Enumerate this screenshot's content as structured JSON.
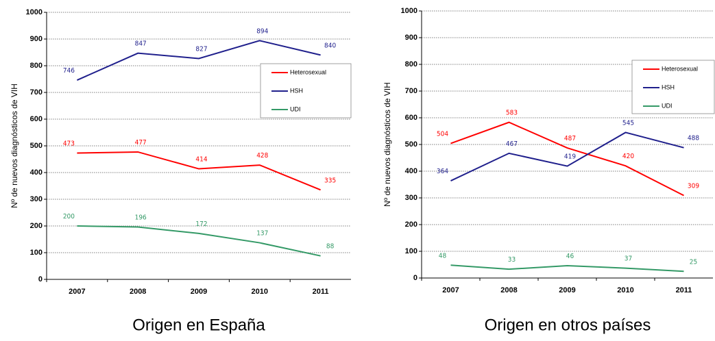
{
  "chart_data": [
    {
      "type": "line",
      "title": "Origen en España",
      "ylabel": "Nº de nuevos diagnósticos de VIH",
      "categories": [
        "2007",
        "2008",
        "2009",
        "2010",
        "2011"
      ],
      "series": [
        {
          "name": "Heterosexual",
          "color": "#ff0000",
          "values": [
            473,
            477,
            414,
            428,
            335
          ]
        },
        {
          "name": "HSH",
          "color": "#1f1f8c",
          "values": [
            746,
            847,
            827,
            894,
            840
          ]
        },
        {
          "name": "UDI",
          "color": "#339966",
          "values": [
            200,
            196,
            172,
            137,
            88
          ]
        }
      ],
      "ylim": [
        0,
        1000
      ],
      "yticks": [
        0,
        100,
        200,
        300,
        400,
        500,
        600,
        700,
        800,
        900,
        1000
      ],
      "grid": true
    },
    {
      "type": "line",
      "title": "Origen en otros países",
      "ylabel": "Nº de nuevos diagnósticos de VIH",
      "categories": [
        "2007",
        "2008",
        "2009",
        "2010",
        "2011"
      ],
      "series": [
        {
          "name": "Heterosexual",
          "color": "#ff0000",
          "values": [
            504,
            583,
            487,
            420,
            309
          ]
        },
        {
          "name": "HSH",
          "color": "#1f1f8c",
          "values": [
            364,
            467,
            419,
            545,
            488
          ]
        },
        {
          "name": "UDI",
          "color": "#339966",
          "values": [
            48,
            33,
            46,
            37,
            25
          ]
        }
      ],
      "ylim": [
        0,
        1000
      ],
      "yticks": [
        0,
        100,
        200,
        300,
        400,
        500,
        600,
        700,
        800,
        900,
        1000
      ],
      "grid": true
    }
  ]
}
